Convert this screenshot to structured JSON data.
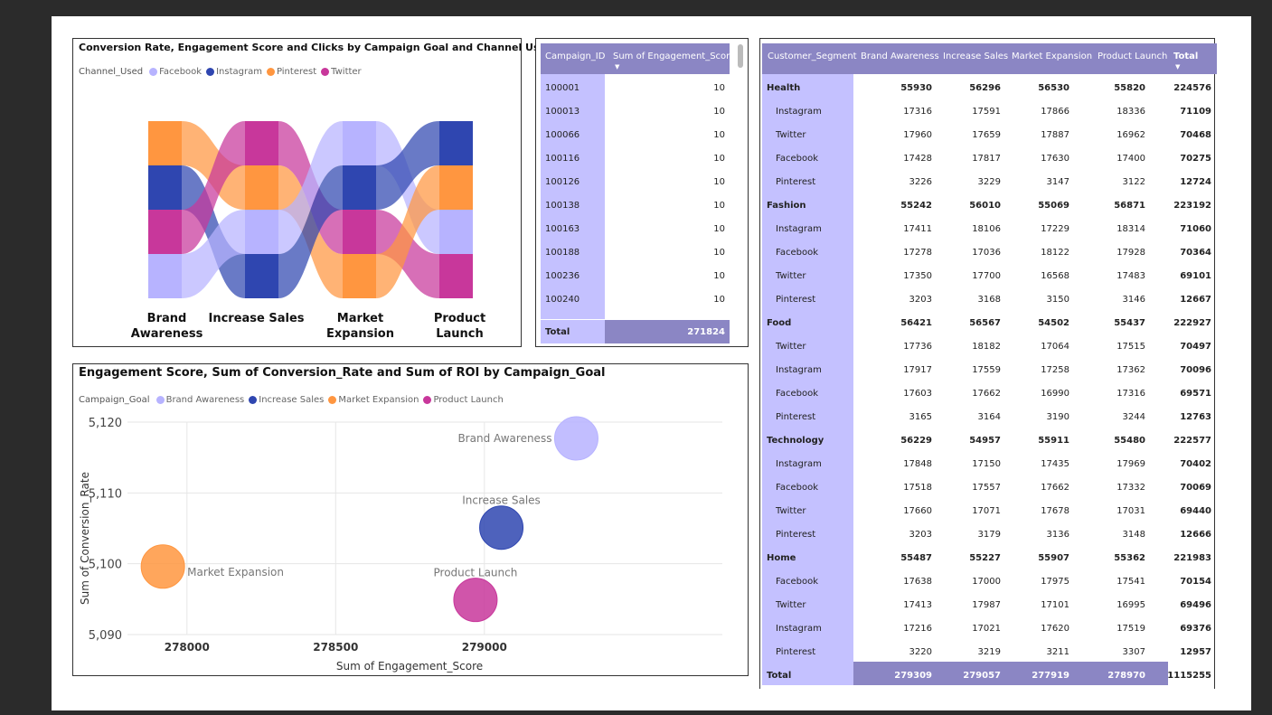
{
  "colors": {
    "facebook": "#b7b3ff",
    "instagram": "#2f46b0",
    "pinterest": "#ff9640",
    "twitter": "#c8379b",
    "header": "#8b86c4",
    "rowband": "#c4c1ff"
  },
  "sankey": {
    "title": "Conversion Rate, Engagement Score and Clicks by Campaign Goal and Channel Used",
    "legend_title": "Channel_Used",
    "legend": [
      {
        "name": "Facebook",
        "color": "#b7b3ff"
      },
      {
        "name": "Instagram",
        "color": "#2f46b0"
      },
      {
        "name": "Pinterest",
        "color": "#ff9640"
      },
      {
        "name": "Twitter",
        "color": "#c8379b"
      }
    ],
    "goals": [
      {
        "line1": "Brand",
        "line2": "Awareness",
        "order": [
          "Pinterest",
          "Instagram",
          "Twitter",
          "Facebook"
        ]
      },
      {
        "line1": "Increase Sales",
        "line2": "",
        "order": [
          "Twitter",
          "Pinterest",
          "Facebook",
          "Instagram"
        ]
      },
      {
        "line1": "Market",
        "line2": "Expansion",
        "order": [
          "Facebook",
          "Instagram",
          "Twitter",
          "Pinterest"
        ]
      },
      {
        "line1": "Product",
        "line2": "Launch",
        "order": [
          "Instagram",
          "Pinterest",
          "Facebook",
          "Twitter"
        ]
      }
    ]
  },
  "campaign_table": {
    "headers": [
      "Campaign_ID",
      "Sum of Engagement_Score"
    ],
    "rows": [
      [
        "100001",
        "10"
      ],
      [
        "100013",
        "10"
      ],
      [
        "100066",
        "10"
      ],
      [
        "100116",
        "10"
      ],
      [
        "100126",
        "10"
      ],
      [
        "100138",
        "10"
      ],
      [
        "100163",
        "10"
      ],
      [
        "100188",
        "10"
      ],
      [
        "100236",
        "10"
      ],
      [
        "100240",
        "10"
      ]
    ],
    "total_label": "Total",
    "total_value": "271824"
  },
  "scatter": {
    "title": "Engagement Score, Sum of Conversion_Rate and Sum of ROI by Campaign_Goal",
    "legend_title": "Campaign_Goal",
    "chart_data": {
      "type": "scatter",
      "xlabel": "Sum of Engagement_Score",
      "ylabel": "Sum of Conversion_Rate",
      "xlim": [
        277800,
        279800
      ],
      "ylim": [
        5090,
        5120
      ],
      "xticks": [
        "278000",
        "278500",
        "279000"
      ],
      "xtick_values": [
        278000,
        278500,
        279000
      ],
      "yticks": [
        "5,090",
        "5,100",
        "5,110",
        "5,120"
      ],
      "ytick_values": [
        5090,
        5100,
        5110,
        5120
      ],
      "series": [
        {
          "name": "Brand Awareness",
          "x": 279309,
          "y": 5117.7,
          "color": "#b7b3ff"
        },
        {
          "name": "Increase Sales",
          "x": 279057,
          "y": 5105.1,
          "color": "#2f46b0"
        },
        {
          "name": "Market Expansion",
          "x": 277919,
          "y": 5099.6,
          "color": "#ff9640"
        },
        {
          "name": "Product Launch",
          "x": 278970,
          "y": 5094.9,
          "color": "#c8379b"
        }
      ]
    }
  },
  "matrix": {
    "headers": [
      "Customer_Segment",
      "Brand Awareness",
      "Increase Sales",
      "Market Expansion",
      "Product Launch",
      "Total"
    ],
    "groups": [
      {
        "name": "Health",
        "values": [
          "55930",
          "56296",
          "56530",
          "55820",
          "224576"
        ],
        "rows": [
          {
            "name": "Instagram",
            "values": [
              "17316",
              "17591",
              "17866",
              "18336",
              "71109"
            ]
          },
          {
            "name": "Twitter",
            "values": [
              "17960",
              "17659",
              "17887",
              "16962",
              "70468"
            ]
          },
          {
            "name": "Facebook",
            "values": [
              "17428",
              "17817",
              "17630",
              "17400",
              "70275"
            ]
          },
          {
            "name": "Pinterest",
            "values": [
              "3226",
              "3229",
              "3147",
              "3122",
              "12724"
            ]
          }
        ]
      },
      {
        "name": "Fashion",
        "values": [
          "55242",
          "56010",
          "55069",
          "56871",
          "223192"
        ],
        "rows": [
          {
            "name": "Instagram",
            "values": [
              "17411",
              "18106",
              "17229",
              "18314",
              "71060"
            ]
          },
          {
            "name": "Facebook",
            "values": [
              "17278",
              "17036",
              "18122",
              "17928",
              "70364"
            ]
          },
          {
            "name": "Twitter",
            "values": [
              "17350",
              "17700",
              "16568",
              "17483",
              "69101"
            ]
          },
          {
            "name": "Pinterest",
            "values": [
              "3203",
              "3168",
              "3150",
              "3146",
              "12667"
            ]
          }
        ]
      },
      {
        "name": "Food",
        "values": [
          "56421",
          "56567",
          "54502",
          "55437",
          "222927"
        ],
        "rows": [
          {
            "name": "Twitter",
            "values": [
              "17736",
              "18182",
              "17064",
              "17515",
              "70497"
            ]
          },
          {
            "name": "Instagram",
            "values": [
              "17917",
              "17559",
              "17258",
              "17362",
              "70096"
            ]
          },
          {
            "name": "Facebook",
            "values": [
              "17603",
              "17662",
              "16990",
              "17316",
              "69571"
            ]
          },
          {
            "name": "Pinterest",
            "values": [
              "3165",
              "3164",
              "3190",
              "3244",
              "12763"
            ]
          }
        ]
      },
      {
        "name": "Technology",
        "values": [
          "56229",
          "54957",
          "55911",
          "55480",
          "222577"
        ],
        "rows": [
          {
            "name": "Instagram",
            "values": [
              "17848",
              "17150",
              "17435",
              "17969",
              "70402"
            ]
          },
          {
            "name": "Facebook",
            "values": [
              "17518",
              "17557",
              "17662",
              "17332",
              "70069"
            ]
          },
          {
            "name": "Twitter",
            "values": [
              "17660",
              "17071",
              "17678",
              "17031",
              "69440"
            ]
          },
          {
            "name": "Pinterest",
            "values": [
              "3203",
              "3179",
              "3136",
              "3148",
              "12666"
            ]
          }
        ]
      },
      {
        "name": "Home",
        "values": [
          "55487",
          "55227",
          "55907",
          "55362",
          "221983"
        ],
        "rows": [
          {
            "name": "Facebook",
            "values": [
              "17638",
              "17000",
              "17975",
              "17541",
              "70154"
            ]
          },
          {
            "name": "Twitter",
            "values": [
              "17413",
              "17987",
              "17101",
              "16995",
              "69496"
            ]
          },
          {
            "name": "Instagram",
            "values": [
              "17216",
              "17021",
              "17620",
              "17519",
              "69376"
            ]
          },
          {
            "name": "Pinterest",
            "values": [
              "3220",
              "3219",
              "3211",
              "3307",
              "12957"
            ]
          }
        ]
      }
    ],
    "total_label": "Total",
    "total_values": [
      "279309",
      "279057",
      "277919",
      "278970",
      "1115255"
    ]
  }
}
